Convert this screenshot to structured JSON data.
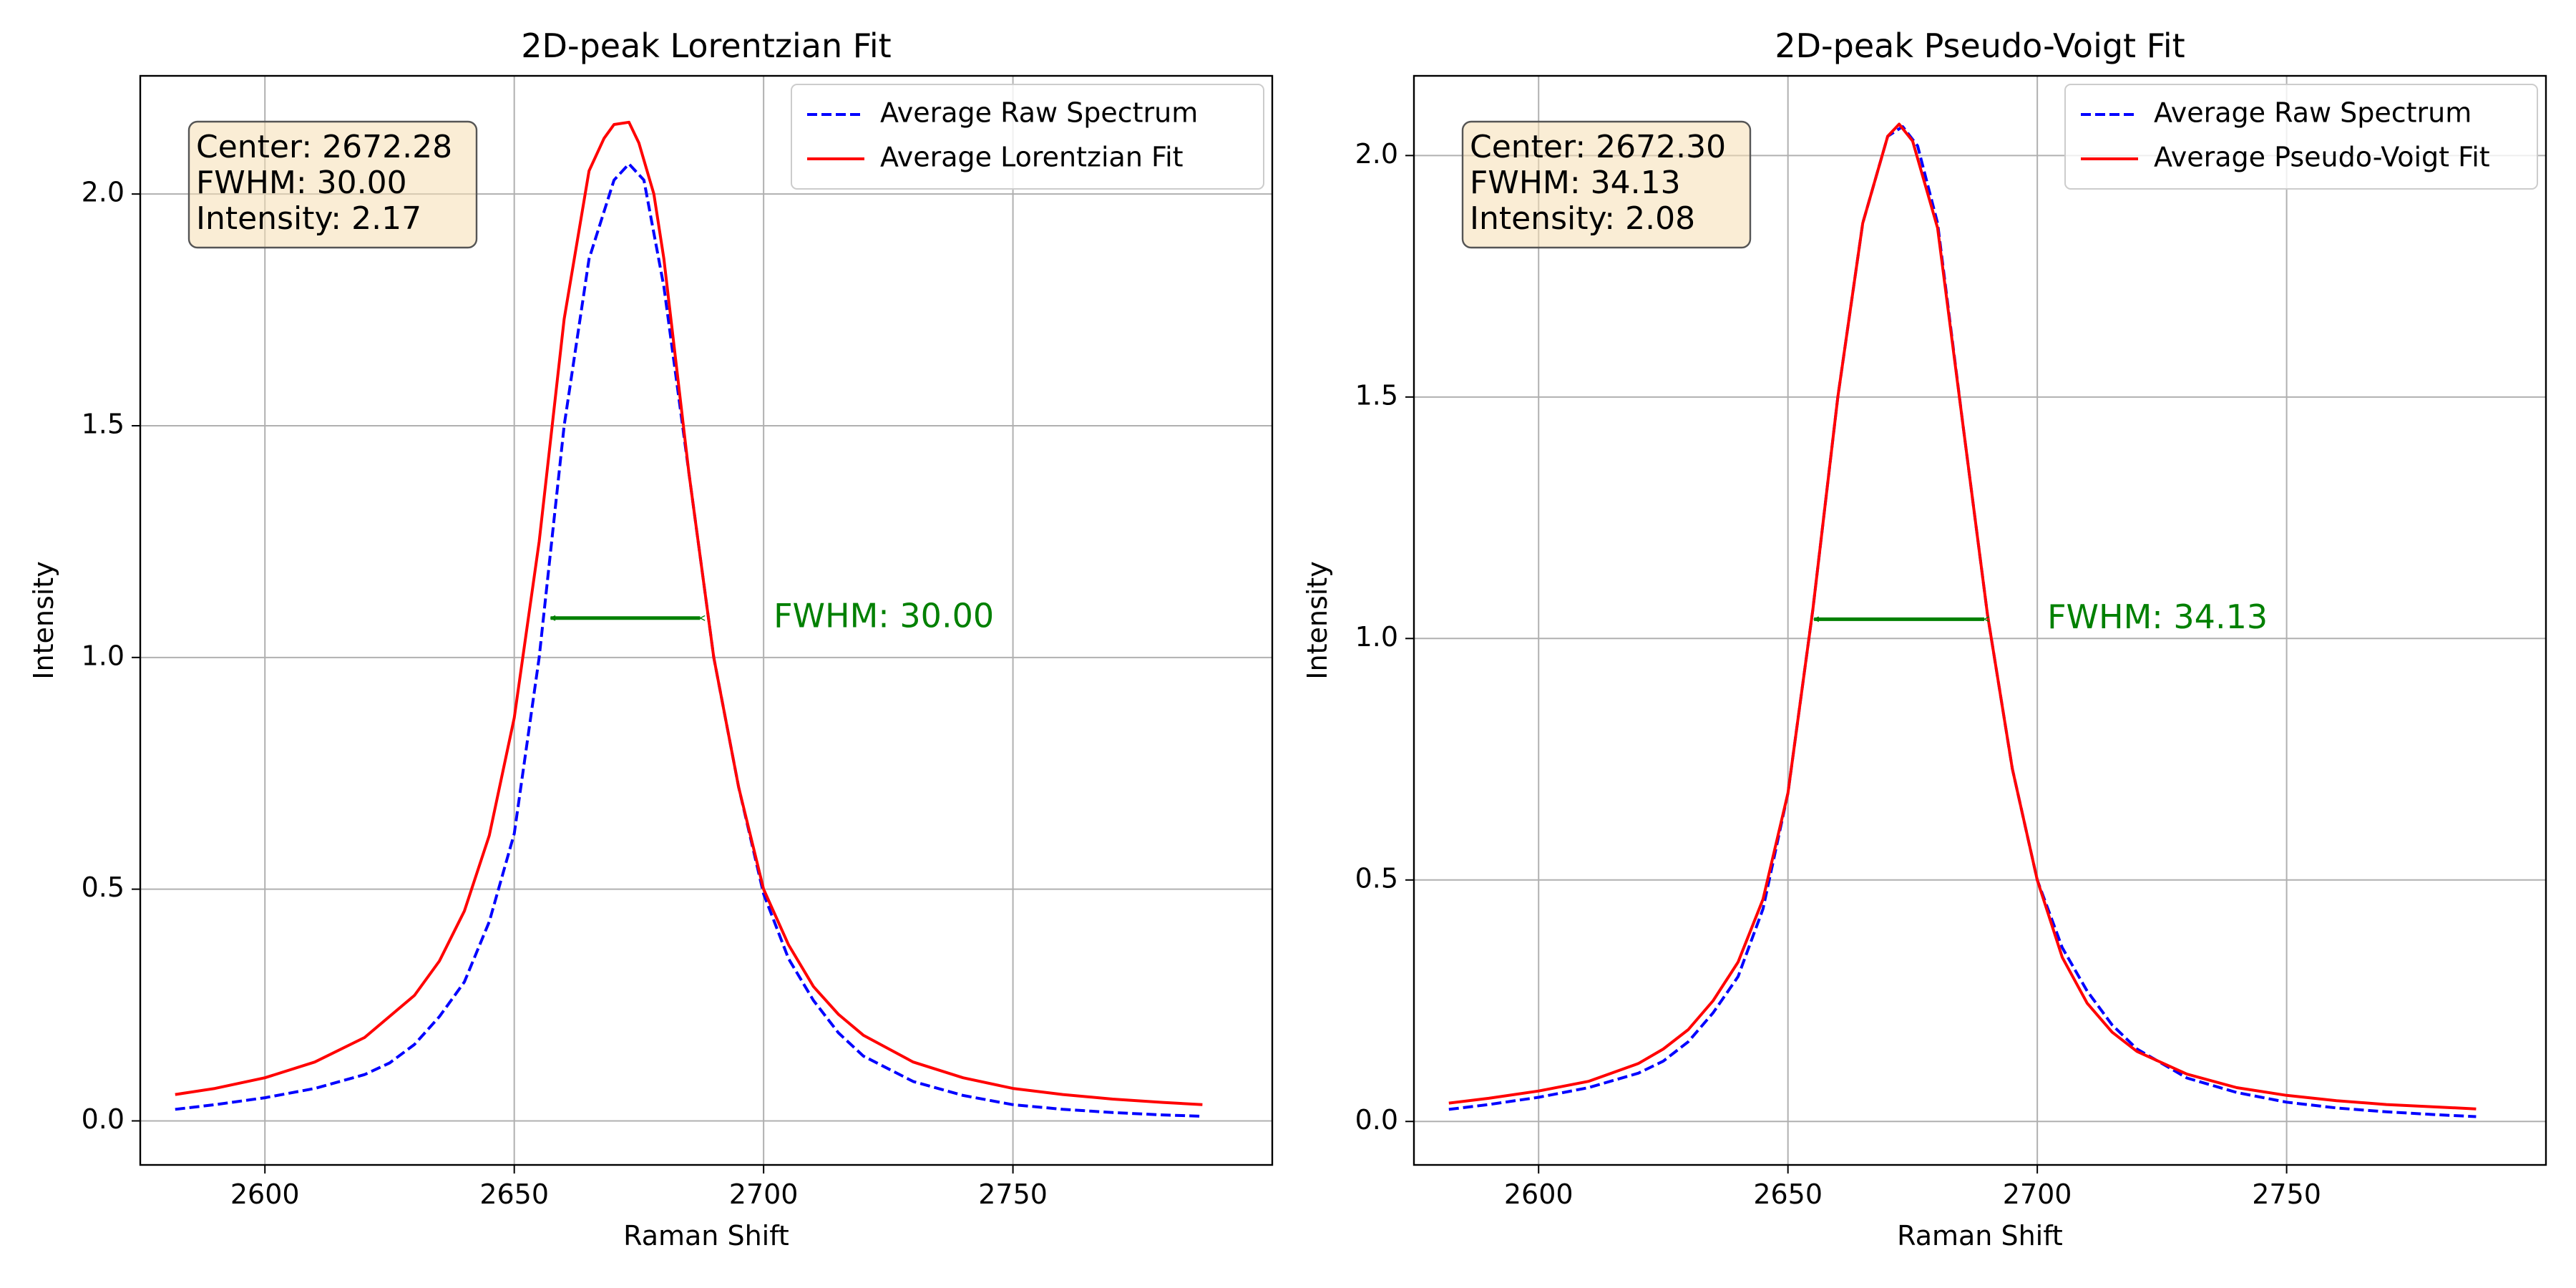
{
  "figure": {
    "background": "#ffffff",
    "colors": {
      "raw": "#0000ff",
      "fit": "#ff0000",
      "fwhm": "#008000",
      "box_fill": "#f5deb3",
      "box_edge": "#555555",
      "grid": "#b0b0b0"
    }
  },
  "chart_data": [
    {
      "type": "line",
      "title": "2D-peak Lorentzian Fit",
      "xlabel": "Raman Shift",
      "ylabel": "Intensity",
      "xlim": [
        2575,
        2802
      ],
      "ylim": [
        -0.095,
        2.255
      ],
      "xticks": [
        2600,
        2650,
        2700,
        2750
      ],
      "yticks": [
        0.0,
        0.5,
        1.0,
        1.5,
        2.0
      ],
      "xtick_labels": [
        "2600",
        "2650",
        "2700",
        "2750"
      ],
      "ytick_labels": [
        "0.0",
        "0.5",
        "1.0",
        "1.5",
        "2.0"
      ],
      "grid": true,
      "legend_position": "top-right",
      "series": [
        {
          "name": "Average Raw Spectrum",
          "style": "dashed",
          "color": "#0000ff",
          "x": [
            2582,
            2590,
            2600,
            2610,
            2620,
            2625,
            2630,
            2635,
            2638,
            2640,
            2645,
            2650,
            2655,
            2660,
            2665,
            2670,
            2673,
            2676,
            2680,
            2685,
            2690,
            2695,
            2700,
            2705,
            2710,
            2715,
            2720,
            2730,
            2740,
            2750,
            2760,
            2770,
            2780,
            2788
          ],
          "y": [
            0.025,
            0.035,
            0.05,
            0.07,
            0.1,
            0.125,
            0.165,
            0.225,
            0.27,
            0.3,
            0.43,
            0.62,
            1.0,
            1.5,
            1.86,
            2.03,
            2.065,
            2.03,
            1.8,
            1.4,
            1.0,
            0.72,
            0.49,
            0.35,
            0.26,
            0.19,
            0.14,
            0.085,
            0.055,
            0.035,
            0.025,
            0.018,
            0.013,
            0.01
          ]
        },
        {
          "name": "Average Lorentzian Fit",
          "style": "solid",
          "color": "#ff0000",
          "x": [
            2582,
            2590,
            2600,
            2610,
            2620,
            2630,
            2635,
            2640,
            2645,
            2650,
            2655,
            2660,
            2665,
            2668,
            2670,
            2673,
            2675,
            2678,
            2680,
            2685,
            2690,
            2695,
            2700,
            2705,
            2710,
            2715,
            2720,
            2730,
            2740,
            2750,
            2760,
            2770,
            2780,
            2788
          ],
          "y": [
            0.057,
            0.07,
            0.093,
            0.127,
            0.18,
            0.271,
            0.345,
            0.453,
            0.616,
            0.87,
            1.25,
            1.73,
            2.05,
            2.12,
            2.15,
            2.155,
            2.11,
            2.0,
            1.86,
            1.4,
            1.0,
            0.72,
            0.5,
            0.38,
            0.29,
            0.23,
            0.185,
            0.127,
            0.093,
            0.07,
            0.057,
            0.047,
            0.04,
            0.035
          ]
        }
      ],
      "annotations": {
        "fwhm_arrow": {
          "x1": 2657.28,
          "x2": 2687.28,
          "y": 1.085,
          "label": "FWHM: 30.00",
          "label_x": 2702,
          "label_y": 1.085
        },
        "info_box": {
          "lines": [
            "Center: 2672.28",
            "FWHM: 30.00",
            "Intensity: 2.17"
          ]
        }
      }
    },
    {
      "type": "line",
      "title": "2D-peak Pseudo-Voigt Fit",
      "xlabel": "Raman Shift",
      "ylabel": "Intensity",
      "xlim": [
        2575,
        2802
      ],
      "ylim": [
        -0.09,
        2.165
      ],
      "xticks": [
        2600,
        2650,
        2700,
        2750
      ],
      "yticks": [
        0.0,
        0.5,
        1.0,
        1.5,
        2.0
      ],
      "xtick_labels": [
        "2600",
        "2650",
        "2700",
        "2750"
      ],
      "ytick_labels": [
        "0.0",
        "0.5",
        "1.0",
        "1.5",
        "2.0"
      ],
      "grid": true,
      "legend_position": "top-right",
      "series": [
        {
          "name": "Average Raw Spectrum",
          "style": "dashed",
          "color": "#0000ff",
          "x": [
            2582,
            2590,
            2600,
            2610,
            2620,
            2625,
            2630,
            2635,
            2638,
            2640,
            2645,
            2650,
            2655,
            2660,
            2665,
            2670,
            2673,
            2676,
            2680,
            2685,
            2690,
            2695,
            2700,
            2705,
            2710,
            2715,
            2720,
            2730,
            2740,
            2750,
            2760,
            2770,
            2780,
            2788
          ],
          "y": [
            0.025,
            0.035,
            0.05,
            0.07,
            0.1,
            0.125,
            0.165,
            0.225,
            0.27,
            0.3,
            0.44,
            0.68,
            1.06,
            1.5,
            1.86,
            2.04,
            2.06,
            2.02,
            1.86,
            1.45,
            1.05,
            0.73,
            0.5,
            0.36,
            0.27,
            0.2,
            0.15,
            0.09,
            0.06,
            0.04,
            0.028,
            0.02,
            0.014,
            0.01
          ]
        },
        {
          "name": "Average Pseudo-Voigt Fit",
          "style": "solid",
          "color": "#ff0000",
          "x": [
            2582,
            2590,
            2600,
            2610,
            2620,
            2625,
            2630,
            2635,
            2640,
            2645,
            2650,
            2655,
            2660,
            2665,
            2670,
            2672.3,
            2675,
            2680,
            2685,
            2690,
            2695,
            2700,
            2705,
            2710,
            2715,
            2720,
            2730,
            2740,
            2750,
            2760,
            2770,
            2780,
            2788
          ],
          "y": [
            0.038,
            0.048,
            0.063,
            0.083,
            0.12,
            0.15,
            0.19,
            0.25,
            0.33,
            0.46,
            0.68,
            1.06,
            1.5,
            1.86,
            2.04,
            2.065,
            2.03,
            1.85,
            1.45,
            1.05,
            0.73,
            0.5,
            0.34,
            0.245,
            0.185,
            0.145,
            0.098,
            0.07,
            0.054,
            0.043,
            0.035,
            0.03,
            0.026
          ]
        }
      ],
      "annotations": {
        "fwhm_arrow": {
          "x1": 2655.23,
          "x2": 2689.36,
          "y": 1.04,
          "label": "FWHM: 34.13",
          "label_x": 2702,
          "label_y": 1.04
        },
        "info_box": {
          "lines": [
            "Center: 2672.30",
            "FWHM: 34.13",
            "Intensity: 2.08"
          ]
        }
      }
    }
  ]
}
